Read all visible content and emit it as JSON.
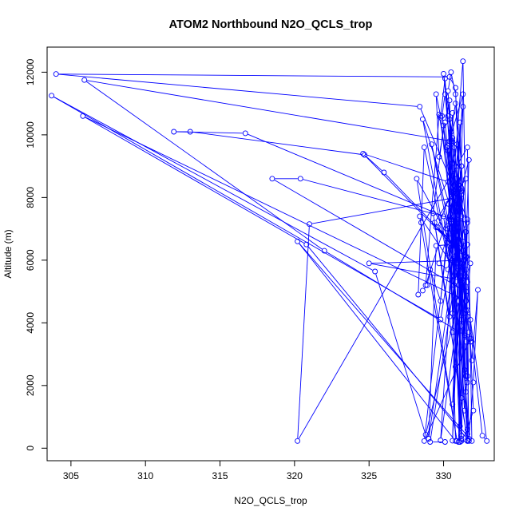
{
  "chart_data": {
    "type": "line",
    "title": "ATOM2 Northbound N2O_QCLS_trop",
    "xlabel": "N2O_QCLS_trop",
    "ylabel": "Altitude (m)",
    "xlim": [
      303.4,
      333.4
    ],
    "ylim": [
      -400,
      12800
    ],
    "xticks": [
      305,
      310,
      315,
      320,
      325,
      330
    ],
    "yticks": [
      0,
      2000,
      4000,
      6000,
      8000,
      10000,
      12000
    ],
    "grid": false,
    "legend": "none",
    "series_color": "#0000ff",
    "x": [
      331.8,
      332.0,
      331.6,
      331.2,
      330.9,
      330.6,
      330.9,
      331.3,
      331.6,
      331.9,
      332.3,
      332.0,
      331.7,
      331.5,
      331.0,
      330.6,
      330.4,
      330.1,
      329.7,
      329.5,
      329.8,
      330.1,
      330.4,
      330.7,
      330.9,
      331.1,
      331.3,
      331.5,
      331.6,
      331.4,
      331.0,
      330.7,
      330.2,
      329.9,
      330.1,
      330.4,
      330.8,
      331.2,
      331.6,
      331.9,
      332.6,
      332.9,
      331.8,
      331.5,
      331.2,
      330.8,
      330.5,
      330.3,
      330.6,
      330.9,
      331.3,
      331.6,
      331.2,
      330.7,
      330.3,
      330.0,
      330.6,
      331.1,
      331.4,
      331.2,
      330.8,
      330.4,
      330.6,
      331.0,
      331.2,
      330.8,
      330.5,
      330.3,
      330.6,
      331.0,
      331.3,
      331.5,
      331.6,
      331.4,
      331.0,
      330.7,
      331.2,
      331.6,
      331.7,
      331.2,
      330.8,
      330.3,
      329.8,
      329.1,
      328.9,
      328.6,
      328.3,
      328.5,
      328.7,
      330.6,
      328.6,
      331.5,
      326.0,
      324.7,
      313.0,
      311.9,
      316.7,
      330.0,
      331.5,
      330.8,
      330.4,
      304.0,
      328.4,
      331.6,
      330.6,
      330.7,
      329.6,
      331.5,
      330.8,
      321.0,
      320.2,
      331.6,
      331.9,
      320.2,
      330.8,
      330.5,
      330.9,
      329.8,
      303.7,
      325.4,
      328.8,
      331.0,
      330.6,
      331.3,
      328.7,
      331.8,
      322.0,
      305.9,
      330.5,
      330.9,
      331.2,
      330.6,
      331.4,
      325.0,
      331.3,
      330.9,
      330.3,
      324.6,
      331.8,
      331.4,
      330.1,
      329.8,
      331.0,
      329.2,
      331.5,
      305.8,
      320.8,
      331.7,
      331.3,
      330.6,
      330.5,
      330.3,
      331.1,
      331.0,
      330.4,
      331.2,
      331.6,
      330.5,
      331.5,
      329.7,
      328.8,
      331.0,
      331.6,
      329.5,
      330.5,
      329.5,
      329.0,
      331.5,
      330.3,
      331.2,
      330.8,
      331.6,
      329.3,
      330.0,
      330.7,
      331.1,
      331.7,
      331.2,
      329.7,
      330.3,
      331.2,
      330.6,
      331.0,
      329.4,
      330.4,
      330.4,
      330.8,
      330.7,
      331.2,
      331.0,
      331.6,
      331.2,
      330.9,
      331.5,
      330.3,
      331.3,
      329.8,
      331.6,
      331.5,
      328.2,
      330.9,
      328.4,
      331.1,
      331.5,
      318.5,
      320.4,
      331.6,
      331.2,
      330.7,
      329.1,
      330.1
    ],
    "y": [
      3400,
      1200,
      600,
      3900,
      6800,
      9800,
      7900,
      6300,
      4400,
      2800,
      5050,
      2100,
      300,
      1800,
      5800,
      8700,
      11100,
      10400,
      9300,
      11300,
      10600,
      11800,
      9500,
      6600,
      7700,
      10400,
      6600,
      4700,
      2300,
      1200,
      4700,
      7400,
      9600,
      10600,
      11300,
      9800,
      11000,
      8100,
      5300,
      3400,
      400,
      230,
      4100,
      6900,
      9000,
      11300,
      12000,
      11400,
      9100,
      6200,
      4300,
      4200,
      7400,
      9600,
      10600,
      11950,
      9900,
      5800,
      3600,
      1600,
      4800,
      7300,
      10700,
      7600,
      4100,
      6900,
      10100,
      7000,
      4300,
      8300,
      6000,
      3400,
      2100,
      2500,
      6400,
      5500,
      5700,
      230,
      3700,
      5600,
      6500,
      7100,
      4700,
      5700,
      5200,
      5030,
      4900,
      7200,
      9600,
      5350,
      10500,
      6100,
      8800,
      9360,
      10100,
      10100,
      10050,
      7400,
      2300,
      11500,
      11850,
      11940,
      10900,
      7300,
      6000,
      8400,
      7050,
      6100,
      8000,
      7150,
      230,
      9600,
      230,
      6600,
      230,
      6400,
      7300,
      4110,
      11250,
      5640,
      430,
      4700,
      240,
      10900,
      230,
      3500,
      6300,
      11750,
      9800,
      5900,
      8200,
      1400,
      6000,
      5900,
      5350,
      9700,
      8500,
      9400,
      5900,
      3600,
      10400,
      10550,
      5200,
      9700,
      4700,
      10600,
      6500,
      230,
      12350,
      8150,
      7300,
      9500,
      200,
      9000,
      6100,
      400,
      450,
      6700,
      5480,
      10650,
      5200,
      8500,
      6100,
      7050,
      6500,
      6460,
      300,
      8600,
      7800,
      5300,
      2600,
      250,
      7500,
      10300,
      6100,
      700,
      9200,
      8300,
      5900,
      5700,
      9000,
      3700,
      8400,
      7200,
      4200,
      10500,
      6000,
      7100,
      5200,
      200,
      230,
      230,
      8600,
      4400,
      9650,
      11300,
      250,
      6500,
      5700,
      8600,
      230,
      7400,
      5500,
      5000,
      8600,
      8600,
      7200,
      300,
      5200,
      200,
      200
    ]
  }
}
